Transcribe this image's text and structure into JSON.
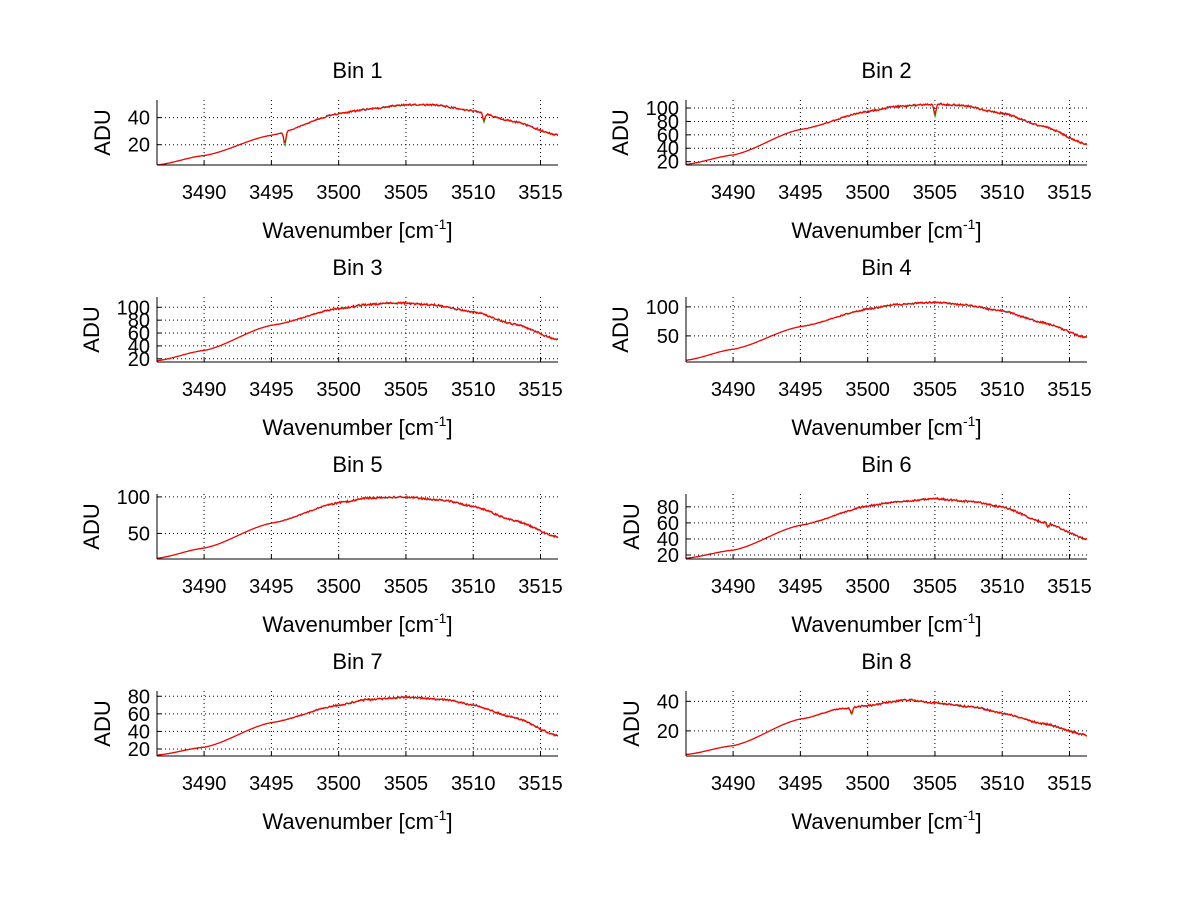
{
  "figure": {
    "background": "#ffffff"
  },
  "chart_data": [
    {
      "type": "line",
      "title": "Bin 1",
      "xlabel": "Wavenumber [cm",
      "xlabel_sup": "-1",
      "xlabel_end": "]",
      "ylabel": "ADU",
      "xlim": [
        3486.5,
        3516.3
      ],
      "ylim": [
        5,
        53
      ],
      "xticks": [
        3490,
        3495,
        3500,
        3505,
        3510,
        3515
      ],
      "yticks": [
        20,
        40
      ],
      "grid": true,
      "series_colors": [
        "#00c000",
        "#0000ff",
        "#e0a000",
        "#ff0000"
      ],
      "profile": [
        [
          3486.5,
          5
        ],
        [
          3490,
          12
        ],
        [
          3495,
          27
        ],
        [
          3500,
          43
        ],
        [
          3502,
          46
        ],
        [
          3505,
          49.5
        ],
        [
          3507,
          49.5
        ],
        [
          3510,
          45
        ],
        [
          3513,
          37
        ],
        [
          3516.3,
          27
        ]
      ],
      "dips": [
        {
          "x": 3496.0,
          "depth": 8
        },
        {
          "x": 3510.8,
          "depth": 5
        }
      ]
    },
    {
      "type": "line",
      "title": "Bin 2",
      "xlabel": "Wavenumber [cm",
      "xlabel_sup": "-1",
      "xlabel_end": "]",
      "ylabel": "ADU",
      "xlim": [
        3486.5,
        3516.3
      ],
      "ylim": [
        15,
        112
      ],
      "xticks": [
        3490,
        3495,
        3500,
        3505,
        3510,
        3515
      ],
      "yticks": [
        20,
        40,
        60,
        80,
        100
      ],
      "grid": true,
      "series_colors": [
        "#00c000",
        "#0000ff",
        "#e0a000",
        "#ff0000"
      ],
      "profile": [
        [
          3486.5,
          16
        ],
        [
          3490,
          30
        ],
        [
          3495,
          68
        ],
        [
          3500,
          95
        ],
        [
          3502,
          102
        ],
        [
          3505,
          106
        ],
        [
          3507,
          104
        ],
        [
          3510,
          92
        ],
        [
          3513,
          73
        ],
        [
          3516.3,
          46
        ]
      ],
      "dips": [
        {
          "x": 3505.0,
          "depth": 14
        }
      ]
    },
    {
      "type": "line",
      "title": "Bin 3",
      "xlabel": "Wavenumber [cm",
      "xlabel_sup": "-1",
      "xlabel_end": "]",
      "ylabel": "ADU",
      "xlim": [
        3486.5,
        3516.3
      ],
      "ylim": [
        15,
        116
      ],
      "xticks": [
        3490,
        3495,
        3500,
        3505,
        3510,
        3515
      ],
      "yticks": [
        20,
        40,
        60,
        80,
        100
      ],
      "grid": true,
      "series_colors": [
        "#00c000",
        "#0000ff",
        "#e0a000",
        "#ff0000"
      ],
      "profile": [
        [
          3486.5,
          17
        ],
        [
          3490,
          33
        ],
        [
          3495,
          72
        ],
        [
          3500,
          98
        ],
        [
          3502,
          104
        ],
        [
          3504,
          107
        ],
        [
          3507,
          104
        ],
        [
          3510,
          93
        ],
        [
          3513,
          74
        ],
        [
          3516.3,
          50
        ]
      ],
      "dips": []
    },
    {
      "type": "line",
      "title": "Bin 4",
      "xlabel": "Wavenumber [cm",
      "xlabel_sup": "-1",
      "xlabel_end": "]",
      "ylabel": "ADU",
      "xlim": [
        3486.5,
        3516.3
      ],
      "ylim": [
        5,
        117
      ],
      "xticks": [
        3490,
        3495,
        3500,
        3505,
        3510,
        3515
      ],
      "yticks": [
        50,
        100
      ],
      "grid": true,
      "series_colors": [
        "#00c000",
        "#0000ff",
        "#e0a000",
        "#ff0000"
      ],
      "profile": [
        [
          3486.5,
          8
        ],
        [
          3490,
          27
        ],
        [
          3495,
          66
        ],
        [
          3500,
          96
        ],
        [
          3502,
          104
        ],
        [
          3505,
          108
        ],
        [
          3507,
          104
        ],
        [
          3510,
          93
        ],
        [
          3513,
          73
        ],
        [
          3516.3,
          47
        ]
      ],
      "dips": []
    },
    {
      "type": "line",
      "title": "Bin 5",
      "xlabel": "Wavenumber [cm",
      "xlabel_sup": "-1",
      "xlabel_end": "]",
      "ylabel": "ADU",
      "xlim": [
        3486.5,
        3516.3
      ],
      "ylim": [
        15,
        104
      ],
      "xticks": [
        3490,
        3495,
        3500,
        3505,
        3510,
        3515
      ],
      "yticks": [
        50,
        100
      ],
      "grid": true,
      "series_colors": [
        "#00c000",
        "#0000ff",
        "#e0a000",
        "#ff0000"
      ],
      "profile": [
        [
          3486.5,
          16
        ],
        [
          3490,
          30
        ],
        [
          3495,
          64
        ],
        [
          3500,
          92
        ],
        [
          3502,
          98
        ],
        [
          3505,
          100
        ],
        [
          3508,
          95
        ],
        [
          3510,
          87
        ],
        [
          3513,
          68
        ],
        [
          3516.3,
          45
        ]
      ],
      "dips": []
    },
    {
      "type": "line",
      "title": "Bin 6",
      "xlabel": "Wavenumber [cm",
      "xlabel_sup": "-1",
      "xlabel_end": "]",
      "ylabel": "ADU",
      "xlim": [
        3486.5,
        3516.3
      ],
      "ylim": [
        15,
        96
      ],
      "xticks": [
        3490,
        3495,
        3500,
        3505,
        3510,
        3515
      ],
      "yticks": [
        20,
        40,
        60,
        80
      ],
      "grid": true,
      "series_colors": [
        "#00c000",
        "#0000ff",
        "#e0a000",
        "#ff0000"
      ],
      "profile": [
        [
          3486.5,
          16
        ],
        [
          3490,
          26
        ],
        [
          3495,
          57
        ],
        [
          3500,
          81
        ],
        [
          3502,
          86
        ],
        [
          3505,
          90
        ],
        [
          3508,
          86
        ],
        [
          3510,
          80
        ],
        [
          3513,
          61
        ],
        [
          3516.3,
          40
        ]
      ],
      "dips": [
        {
          "x": 3513.4,
          "depth": 4
        }
      ]
    },
    {
      "type": "line",
      "title": "Bin 7",
      "xlabel": "Wavenumber [cm",
      "xlabel_sup": "-1",
      "xlabel_end": "]",
      "ylabel": "ADU",
      "xlim": [
        3486.5,
        3516.3
      ],
      "ylim": [
        12,
        86
      ],
      "xticks": [
        3490,
        3495,
        3500,
        3505,
        3510,
        3515
      ],
      "yticks": [
        20,
        40,
        60,
        80
      ],
      "grid": true,
      "series_colors": [
        "#00c000",
        "#0000ff",
        "#e0a000",
        "#ff0000"
      ],
      "profile": [
        [
          3486.5,
          13
        ],
        [
          3490,
          22
        ],
        [
          3495,
          50
        ],
        [
          3500,
          70
        ],
        [
          3502,
          76
        ],
        [
          3505,
          79
        ],
        [
          3508,
          76
        ],
        [
          3510,
          70
        ],
        [
          3513,
          56
        ],
        [
          3516.3,
          35
        ]
      ],
      "dips": []
    },
    {
      "type": "line",
      "title": "Bin 8",
      "xlabel": "Wavenumber [cm",
      "xlabel_sup": "-1",
      "xlabel_end": "]",
      "ylabel": "ADU",
      "xlim": [
        3486.5,
        3516.3
      ],
      "ylim": [
        3,
        47
      ],
      "xticks": [
        3490,
        3495,
        3500,
        3505,
        3510,
        3515
      ],
      "yticks": [
        20,
        40
      ],
      "grid": true,
      "series_colors": [
        "#00c000",
        "#0000ff",
        "#e0a000",
        "#ff0000"
      ],
      "profile": [
        [
          3486.5,
          4
        ],
        [
          3490,
          10
        ],
        [
          3495,
          28
        ],
        [
          3498,
          35
        ],
        [
          3500,
          37
        ],
        [
          3502,
          40
        ],
        [
          3503,
          41
        ],
        [
          3505,
          39
        ],
        [
          3508,
          36
        ],
        [
          3510,
          32
        ],
        [
          3513,
          25
        ],
        [
          3516.3,
          17
        ]
      ],
      "dips": [
        {
          "x": 3498.8,
          "depth": 4
        }
      ]
    }
  ]
}
